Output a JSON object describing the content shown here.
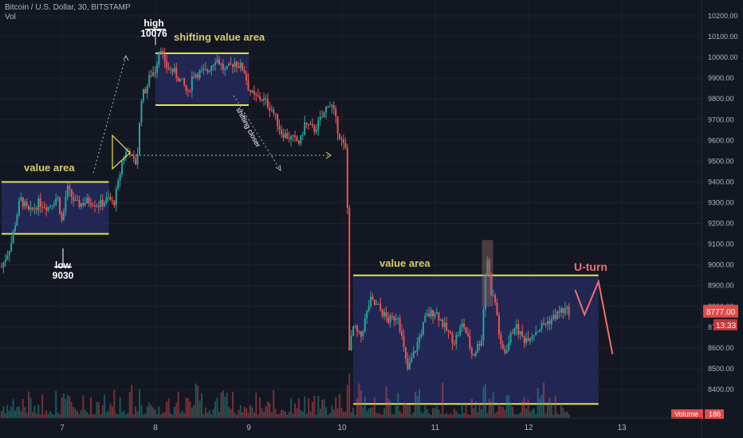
{
  "header": {
    "symbol_line": "Bitcoin / U.S. Dollar, 30, BITSTAMP",
    "volume_indicator": "Vol"
  },
  "colors": {
    "background": "#131722",
    "up": "#26a69a",
    "down": "#ef5350",
    "annotation_yellow": "#e8e24a",
    "annotation_label": "#d8c86a",
    "box_fill": "#252a5a",
    "uturn": "#f07070",
    "price_badge": "#e04a4a"
  },
  "chart_data": {
    "type": "candlestick",
    "ylim": [
      8300,
      10280
    ],
    "price_ticks": [
      "10200.00",
      "10100.00",
      "10000.00",
      "9900.00",
      "9800.00",
      "9700.00",
      "9600.00",
      "9500.00",
      "9400.00",
      "9300.00",
      "9200.00",
      "9100.00",
      "9000.00",
      "8900.00",
      "8800.00",
      "8700.00",
      "8600.00",
      "8500.00",
      "8400.00"
    ],
    "price_tick_values": [
      10200,
      10100,
      10000,
      9900,
      9800,
      9700,
      9600,
      9500,
      9400,
      9300,
      9200,
      9100,
      9000,
      8900,
      8800,
      8700,
      8600,
      8500,
      8400
    ],
    "date_ticks": [
      "7",
      "8",
      "9",
      "10",
      "11",
      "12",
      "13"
    ],
    "date_tick_days": [
      7,
      8,
      9,
      10,
      11,
      12,
      13
    ],
    "xlim_days": [
      6.35,
      13.9
    ],
    "current_price": "8777.00",
    "countdown": "13:33",
    "volume_label": "Volume",
    "volume_value": "186",
    "price_path": [
      [
        6.35,
        8990
      ],
      [
        6.45,
        9100
      ],
      [
        6.55,
        9320
      ],
      [
        6.65,
        9250
      ],
      [
        6.75,
        9300
      ],
      [
        6.85,
        9280
      ],
      [
        6.95,
        9330
      ],
      [
        7.0,
        9200
      ],
      [
        7.05,
        9370
      ],
      [
        7.15,
        9290
      ],
      [
        7.3,
        9310
      ],
      [
        7.4,
        9290
      ],
      [
        7.5,
        9320
      ],
      [
        7.55,
        9290
      ],
      [
        7.6,
        9390
      ],
      [
        7.65,
        9520
      ],
      [
        7.72,
        9560
      ],
      [
        7.75,
        9500
      ],
      [
        7.8,
        9490
      ],
      [
        7.85,
        9810
      ],
      [
        7.9,
        9850
      ],
      [
        7.95,
        9920
      ],
      [
        8.0,
        9940
      ],
      [
        8.05,
        10070
      ],
      [
        8.1,
        9960
      ],
      [
        8.2,
        9930
      ],
      [
        8.3,
        9870
      ],
      [
        8.35,
        9820
      ],
      [
        8.4,
        9920
      ],
      [
        8.55,
        9930
      ],
      [
        8.65,
        10000
      ],
      [
        8.75,
        9930
      ],
      [
        8.85,
        9980
      ],
      [
        8.95,
        9940
      ],
      [
        9.0,
        9850
      ],
      [
        9.05,
        9810
      ],
      [
        9.15,
        9800
      ],
      [
        9.25,
        9750
      ],
      [
        9.35,
        9640
      ],
      [
        9.45,
        9610
      ],
      [
        9.55,
        9590
      ],
      [
        9.6,
        9680
      ],
      [
        9.7,
        9650
      ],
      [
        9.8,
        9720
      ],
      [
        9.85,
        9780
      ],
      [
        9.9,
        9760
      ],
      [
        9.95,
        9660
      ],
      [
        10.0,
        9590
      ],
      [
        10.05,
        9540
      ],
      [
        10.08,
        8580
      ],
      [
        10.12,
        8700
      ],
      [
        10.2,
        8650
      ],
      [
        10.3,
        8830
      ],
      [
        10.4,
        8790
      ],
      [
        10.5,
        8730
      ],
      [
        10.6,
        8760
      ],
      [
        10.7,
        8490
      ],
      [
        10.8,
        8610
      ],
      [
        10.9,
        8750
      ],
      [
        11.0,
        8780
      ],
      [
        11.1,
        8700
      ],
      [
        11.2,
        8630
      ],
      [
        11.3,
        8720
      ],
      [
        11.4,
        8560
      ],
      [
        11.5,
        8650
      ],
      [
        11.55,
        9060
      ],
      [
        11.6,
        8870
      ],
      [
        11.65,
        8810
      ],
      [
        11.7,
        8600
      ],
      [
        11.75,
        8580
      ],
      [
        11.85,
        8710
      ],
      [
        11.95,
        8640
      ],
      [
        12.05,
        8670
      ],
      [
        12.15,
        8710
      ],
      [
        12.25,
        8740
      ],
      [
        12.35,
        8780
      ],
      [
        12.45,
        8777
      ]
    ],
    "annotations": [
      {
        "text": "value area",
        "type": "box"
      },
      {
        "text": "low",
        "type": "label"
      },
      {
        "text": "9030",
        "type": "label"
      },
      {
        "text": "high",
        "type": "label"
      },
      {
        "text": "10076",
        "type": "label"
      },
      {
        "text": "shifting value area",
        "type": "box"
      },
      {
        "text": "shifting closer",
        "type": "label"
      },
      {
        "text": "value area",
        "type": "box"
      },
      {
        "text": "U-turn",
        "type": "label"
      }
    ],
    "boxes": [
      {
        "label_index": 0,
        "x": [
          6.35,
          7.5
        ],
        "y": [
          9150,
          9400
        ]
      },
      {
        "label_index": 5,
        "x": [
          8.0,
          9.0
        ],
        "y": [
          9770,
          10020
        ]
      },
      {
        "label_index": 7,
        "x": [
          10.12,
          12.75
        ],
        "y": [
          8330,
          8950
        ]
      }
    ],
    "uturn_path": [
      [
        12.5,
        8880
      ],
      [
        12.6,
        8760
      ],
      [
        12.75,
        8920
      ],
      [
        12.9,
        8570
      ]
    ]
  }
}
